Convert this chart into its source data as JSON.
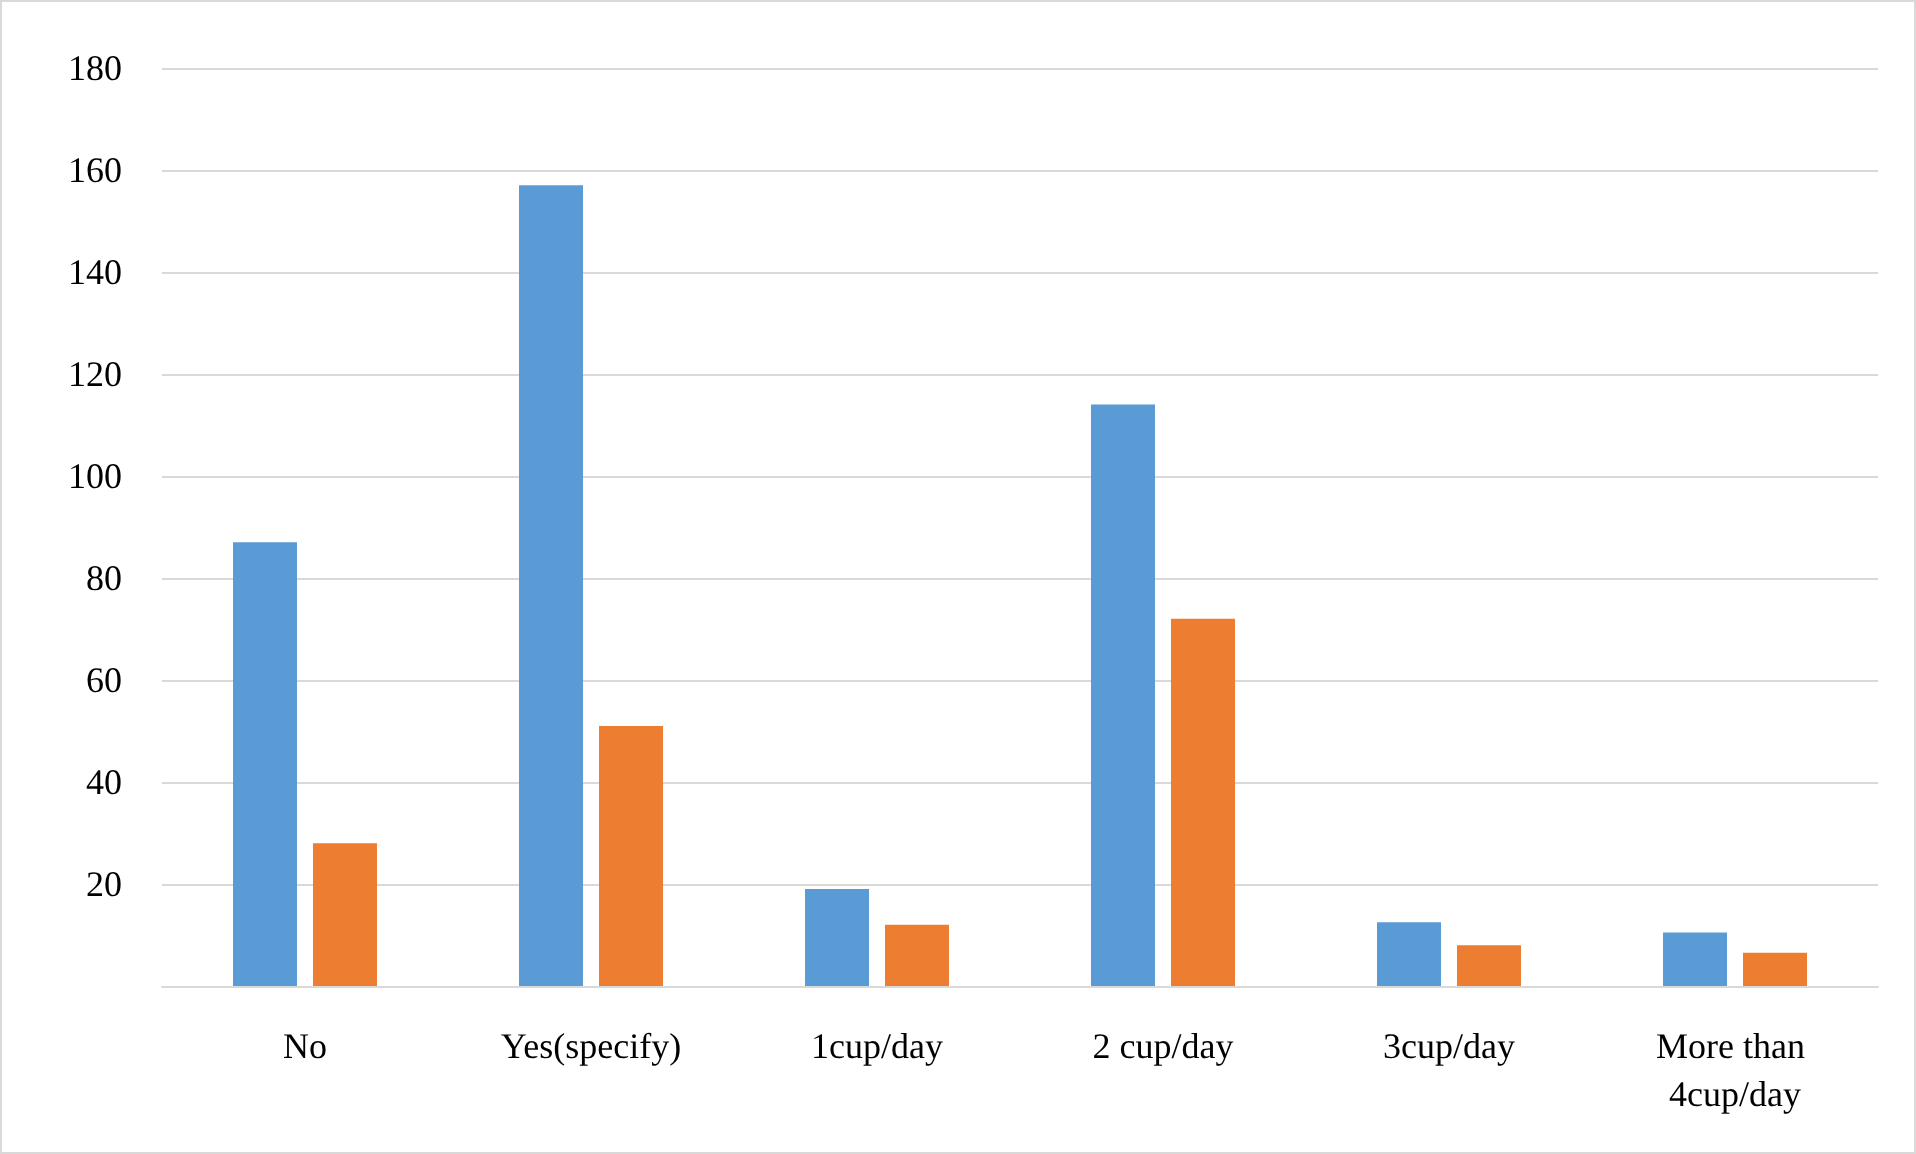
{
  "chart_data": {
    "type": "bar",
    "categories": [
      "No",
      "Yes(specify)",
      "1cup/day",
      "2 cup/day",
      "3cup/day",
      "More than 4cup/day"
    ],
    "series": [
      {
        "color": "#5b9bd5",
        "values": [
          87,
          157,
          19,
          114,
          12.5,
          10.5
        ]
      },
      {
        "color": "#ed7d31",
        "values": [
          28,
          51,
          12,
          72,
          8,
          6.5
        ]
      }
    ],
    "ylim": [
      0,
      180
    ],
    "yticks": [
      {
        "value": 0,
        "label": null
      },
      20,
      40,
      60,
      80,
      100,
      120,
      140,
      160,
      180
    ],
    "grid": "y"
  }
}
